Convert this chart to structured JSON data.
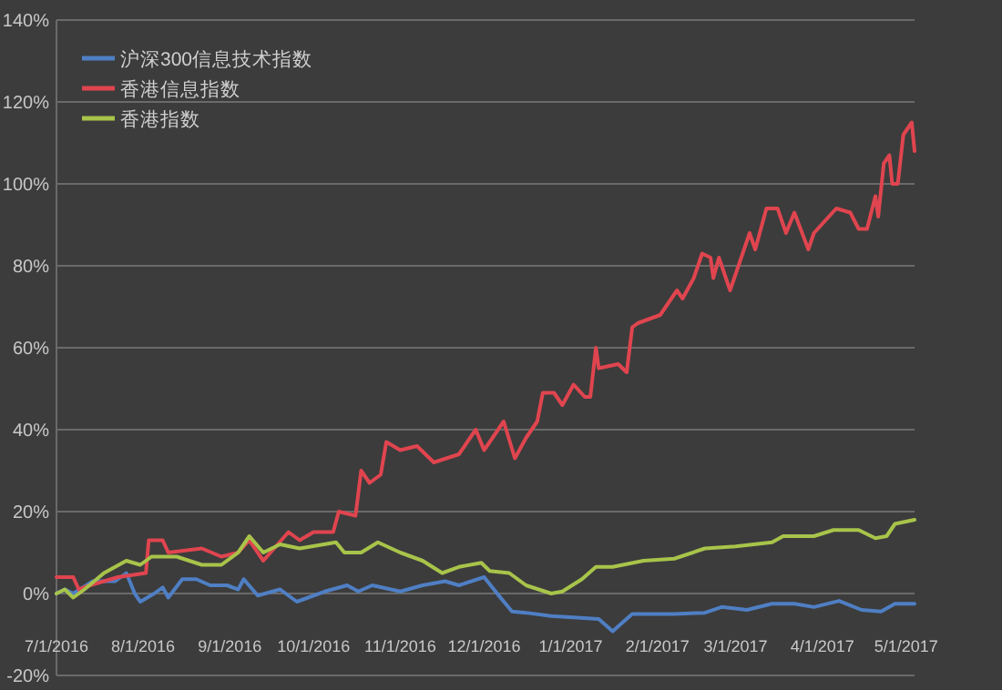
{
  "chart_data": {
    "type": "line",
    "xlim": [
      "2016-07-01",
      "2017-05-04"
    ],
    "xticks": [
      {
        "value": "2016-07-01",
        "label": "7/1/2016"
      },
      {
        "value": "2016-08-01",
        "label": "8/1/2016"
      },
      {
        "value": "2016-09-01",
        "label": "9/1/2016"
      },
      {
        "value": "2016-10-01",
        "label": "10/1/2016"
      },
      {
        "value": "2016-11-01",
        "label": "11/1/2016"
      },
      {
        "value": "2016-12-01",
        "label": "12/1/2016"
      },
      {
        "value": "2017-01-01",
        "label": "1/1/2017"
      },
      {
        "value": "2017-02-01",
        "label": "2/1/2017"
      },
      {
        "value": "2017-03-01",
        "label": "3/1/2017"
      },
      {
        "value": "2017-04-01",
        "label": "4/1/2017"
      },
      {
        "value": "2017-05-01",
        "label": "5/1/2017"
      }
    ],
    "ylim": [
      -20,
      140
    ],
    "yticks": [
      {
        "value": -20,
        "label": "-20%"
      },
      {
        "value": 0,
        "label": "0%"
      },
      {
        "value": 20,
        "label": "20%"
      },
      {
        "value": 40,
        "label": "40%"
      },
      {
        "value": 60,
        "label": "60%"
      },
      {
        "value": 80,
        "label": "80%"
      },
      {
        "value": 100,
        "label": "100%"
      },
      {
        "value": 120,
        "label": "120%"
      },
      {
        "value": 140,
        "label": "140%"
      }
    ],
    "grid": "y",
    "legend": "top left",
    "marker": "none",
    "line_style": "solid",
    "series": [
      {
        "name": "沪深300信息技术指数",
        "color": "#4f7fc4",
        "x": [
          "2016-07-01",
          "2016-07-04",
          "2016-07-07",
          "2016-07-14",
          "2016-07-22",
          "2016-07-26",
          "2016-07-29",
          "2016-07-31",
          "2016-08-05",
          "2016-08-08",
          "2016-08-10",
          "2016-08-15",
          "2016-08-20",
          "2016-08-25",
          "2016-08-31",
          "2016-09-04",
          "2016-09-06",
          "2016-09-11",
          "2016-09-19",
          "2016-09-25",
          "2016-10-05",
          "2016-10-13",
          "2016-10-17",
          "2016-10-22",
          "2016-11-01",
          "2016-11-09",
          "2016-11-17",
          "2016-11-22",
          "2016-12-01",
          "2016-12-06",
          "2016-12-11",
          "2016-12-16",
          "2016-12-25",
          "2017-01-11",
          "2017-01-16",
          "2017-01-19",
          "2017-01-23",
          "2017-02-07",
          "2017-02-18",
          "2017-02-24",
          "2017-03-05",
          "2017-03-14",
          "2017-03-22",
          "2017-03-29",
          "2017-04-07",
          "2017-04-15",
          "2017-04-22",
          "2017-04-27",
          "2017-05-04"
        ],
        "values": [
          0,
          1,
          0,
          3,
          3,
          5,
          0,
          -2,
          0,
          1.5,
          -1,
          3.5,
          3.5,
          2,
          2,
          1,
          3.5,
          -0.5,
          1,
          -2,
          0.5,
          2,
          0.5,
          2,
          0.5,
          2,
          3,
          2,
          4,
          -0.3,
          -4.4,
          -4.7,
          -5.5,
          -6.2,
          -9.2,
          -7.4,
          -5,
          -5,
          -4.7,
          -3.3,
          -4,
          -2.5,
          -2.5,
          -3.3,
          -1.8,
          -4,
          -4.4,
          -2.5,
          -2.5
        ]
      },
      {
        "name": "香港信息指数",
        "color": "#e0454f",
        "x": [
          "2016-07-01",
          "2016-07-07",
          "2016-07-09",
          "2016-07-13",
          "2016-07-23",
          "2016-08-02",
          "2016-08-03",
          "2016-08-08",
          "2016-08-10",
          "2016-08-22",
          "2016-08-29",
          "2016-09-04",
          "2016-09-08",
          "2016-09-13",
          "2016-09-22",
          "2016-09-26",
          "2016-10-01",
          "2016-10-08",
          "2016-10-10",
          "2016-10-16",
          "2016-10-18",
          "2016-10-21",
          "2016-10-25",
          "2016-10-27",
          "2016-11-01",
          "2016-11-07",
          "2016-11-13",
          "2016-11-22",
          "2016-11-28",
          "2016-12-01",
          "2016-12-08",
          "2016-12-12",
          "2016-12-16",
          "2016-12-20",
          "2016-12-22",
          "2016-12-26",
          "2016-12-29",
          "2017-01-02",
          "2017-01-06",
          "2017-01-08",
          "2017-01-10",
          "2017-01-11",
          "2017-01-18",
          "2017-01-21",
          "2017-01-23",
          "2017-01-25",
          "2017-02-02",
          "2017-02-08",
          "2017-02-10",
          "2017-02-14",
          "2017-02-17",
          "2017-02-20",
          "2017-02-21",
          "2017-02-23",
          "2017-02-27",
          "2017-03-06",
          "2017-03-08",
          "2017-03-12",
          "2017-03-16",
          "2017-03-19",
          "2017-03-22",
          "2017-03-27",
          "2017-03-29",
          "2017-04-06",
          "2017-04-11",
          "2017-04-14",
          "2017-04-17",
          "2017-04-20",
          "2017-04-21",
          "2017-04-23",
          "2017-04-25",
          "2017-04-26",
          "2017-04-28",
          "2017-04-30",
          "2017-05-03",
          "2017-05-04"
        ],
        "values": [
          4,
          4,
          1,
          2,
          4,
          5,
          13,
          13,
          10,
          11,
          9,
          10,
          13,
          8,
          15,
          13,
          15,
          15,
          20,
          19,
          30,
          27,
          29,
          37,
          35,
          36,
          32,
          34,
          40,
          35,
          42,
          33,
          38,
          42,
          49,
          49,
          46,
          51,
          48,
          48,
          60,
          55,
          56,
          54,
          65,
          66,
          68,
          74,
          72,
          77,
          83,
          82,
          77,
          82,
          74,
          88,
          84,
          94,
          94,
          88,
          93,
          84,
          88,
          94,
          93,
          89,
          89,
          97,
          92,
          105,
          107,
          100,
          100,
          112,
          115,
          108
        ]
      },
      {
        "name": "香港指数",
        "color": "#a8c44a",
        "x": [
          "2016-07-01",
          "2016-07-04",
          "2016-07-07",
          "2016-07-11",
          "2016-07-18",
          "2016-07-26",
          "2016-07-31",
          "2016-08-04",
          "2016-08-13",
          "2016-08-22",
          "2016-08-29",
          "2016-09-04",
          "2016-09-08",
          "2016-09-13",
          "2016-09-19",
          "2016-09-26",
          "2016-10-09",
          "2016-10-12",
          "2016-10-18",
          "2016-10-24",
          "2016-11-01",
          "2016-11-09",
          "2016-11-16",
          "2016-11-22",
          "2016-11-30",
          "2016-12-03",
          "2016-12-10",
          "2016-12-16",
          "2016-12-25",
          "2016-12-29",
          "2017-01-05",
          "2017-01-10",
          "2017-01-16",
          "2017-01-27",
          "2017-02-07",
          "2017-02-18",
          "2017-03-01",
          "2017-03-14",
          "2017-03-18",
          "2017-03-29",
          "2017-04-05",
          "2017-04-14",
          "2017-04-20",
          "2017-04-24",
          "2017-04-27",
          "2017-05-04"
        ],
        "values": [
          0,
          1,
          -1,
          1,
          5,
          8,
          7,
          9,
          9,
          7,
          7,
          10,
          14,
          10,
          12,
          11,
          12.5,
          10,
          10,
          12.5,
          10,
          8,
          5,
          6.5,
          7.5,
          5.5,
          5,
          2,
          0,
          0.5,
          3.5,
          6.5,
          6.5,
          8,
          8.5,
          11,
          11.5,
          12.5,
          14,
          14,
          15.5,
          15.5,
          13.5,
          14,
          17,
          18
        ]
      }
    ]
  }
}
